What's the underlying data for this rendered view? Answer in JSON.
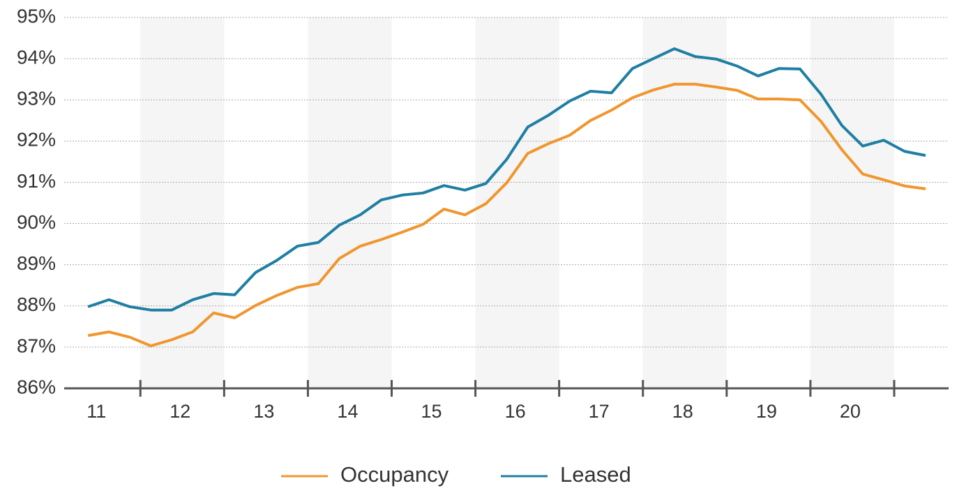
{
  "chart_data": {
    "type": "line",
    "x": [
      11.375,
      11.625,
      11.875,
      12.125,
      12.375,
      12.625,
      12.875,
      13.125,
      13.375,
      13.625,
      13.875,
      14.125,
      14.375,
      14.625,
      14.875,
      15.125,
      15.375,
      15.625,
      15.875,
      16.125,
      16.375,
      16.625,
      16.875,
      17.125,
      17.375,
      17.625,
      17.875,
      18.125,
      18.375,
      18.625,
      18.875,
      19.125,
      19.375,
      19.625,
      19.875,
      20.125,
      20.375,
      20.625,
      20.875,
      21.125,
      21.375
    ],
    "series": [
      {
        "name": "Occupancy",
        "color": "#f0962e",
        "values": [
          87.28,
          87.37,
          87.24,
          87.03,
          87.18,
          87.37,
          87.83,
          87.71,
          88.01,
          88.25,
          88.45,
          88.54,
          89.15,
          89.45,
          89.61,
          89.79,
          89.98,
          90.35,
          90.21,
          90.48,
          90.99,
          91.7,
          91.94,
          92.14,
          92.5,
          92.75,
          93.05,
          93.24,
          93.38,
          93.38,
          93.31,
          93.23,
          93.02,
          93.02,
          93.0,
          92.48,
          91.79,
          91.2,
          91.06,
          90.91,
          90.84
        ]
      },
      {
        "name": "Leased",
        "color": "#1f7fa3",
        "values": [
          87.98,
          88.15,
          87.98,
          87.9,
          87.9,
          88.15,
          88.3,
          88.27,
          88.81,
          89.1,
          89.45,
          89.54,
          89.96,
          90.21,
          90.57,
          90.69,
          90.74,
          90.92,
          90.81,
          90.97,
          91.56,
          92.34,
          92.63,
          92.97,
          93.21,
          93.17,
          93.76,
          94.0,
          94.24,
          94.05,
          93.99,
          93.82,
          93.58,
          93.76,
          93.75,
          93.14,
          92.38,
          91.88,
          92.02,
          91.75,
          91.65
        ]
      }
    ],
    "xlim": [
      11.09,
      21.65
    ],
    "xticks": [
      {
        "value": 11.5,
        "label": "11"
      },
      {
        "value": 12.5,
        "label": "12"
      },
      {
        "value": 13.5,
        "label": "13"
      },
      {
        "value": 14.5,
        "label": "14"
      },
      {
        "value": 15.5,
        "label": "15"
      },
      {
        "value": 16.5,
        "label": "16"
      },
      {
        "value": 17.5,
        "label": "17"
      },
      {
        "value": 18.5,
        "label": "18"
      },
      {
        "value": 19.5,
        "label": "19"
      },
      {
        "value": 20.5,
        "label": "20"
      }
    ],
    "ylim": [
      86,
      95
    ],
    "yticks": [
      {
        "value": 86,
        "label": "86%"
      },
      {
        "value": 87,
        "label": "87%"
      },
      {
        "value": 88,
        "label": "88%"
      },
      {
        "value": 89,
        "label": "89%"
      },
      {
        "value": 90,
        "label": "90%"
      },
      {
        "value": 91,
        "label": "91%"
      },
      {
        "value": 92,
        "label": "92%"
      },
      {
        "value": 93,
        "label": "93%"
      },
      {
        "value": 94,
        "label": "94%"
      },
      {
        "value": 95,
        "label": "95%"
      }
    ],
    "grid": true
  }
}
